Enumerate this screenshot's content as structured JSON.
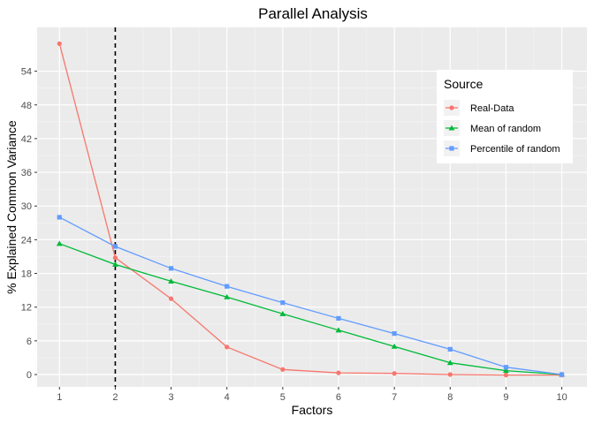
{
  "chart_data": {
    "type": "line",
    "title": "Parallel Analysis",
    "xlabel": "Factors",
    "ylabel": "% Explained Common Variance",
    "x": [
      1,
      2,
      3,
      4,
      5,
      6,
      7,
      8,
      9,
      10
    ],
    "xlim": [
      0.6,
      10.45
    ],
    "ylim": [
      -2.2,
      61.8
    ],
    "x_ticks": [
      1,
      2,
      3,
      4,
      5,
      6,
      7,
      8,
      9,
      10
    ],
    "y_ticks": [
      0,
      6,
      12,
      18,
      24,
      30,
      36,
      42,
      48,
      54
    ],
    "grid": true,
    "vline": {
      "x": 2,
      "style": "dashed",
      "color": "#000000"
    },
    "legend": {
      "title": "Source",
      "placement": "right-top"
    },
    "series": [
      {
        "name": "Real-Data",
        "color": "#F8766D",
        "marker": "circle",
        "values": [
          58.9,
          20.8,
          13.5,
          4.9,
          0.9,
          0.3,
          0.2,
          0.0,
          -0.1,
          -0.1
        ]
      },
      {
        "name": "Mean of random",
        "color": "#00BA38",
        "marker": "triangle",
        "values": [
          23.3,
          19.6,
          16.6,
          13.8,
          10.8,
          7.9,
          5.0,
          2.1,
          0.7,
          0.0
        ]
      },
      {
        "name": "Percentile of random",
        "color": "#619CFF",
        "marker": "square",
        "values": [
          28.0,
          22.8,
          18.9,
          15.7,
          12.8,
          10.0,
          7.3,
          4.5,
          1.3,
          0.0
        ]
      }
    ]
  }
}
